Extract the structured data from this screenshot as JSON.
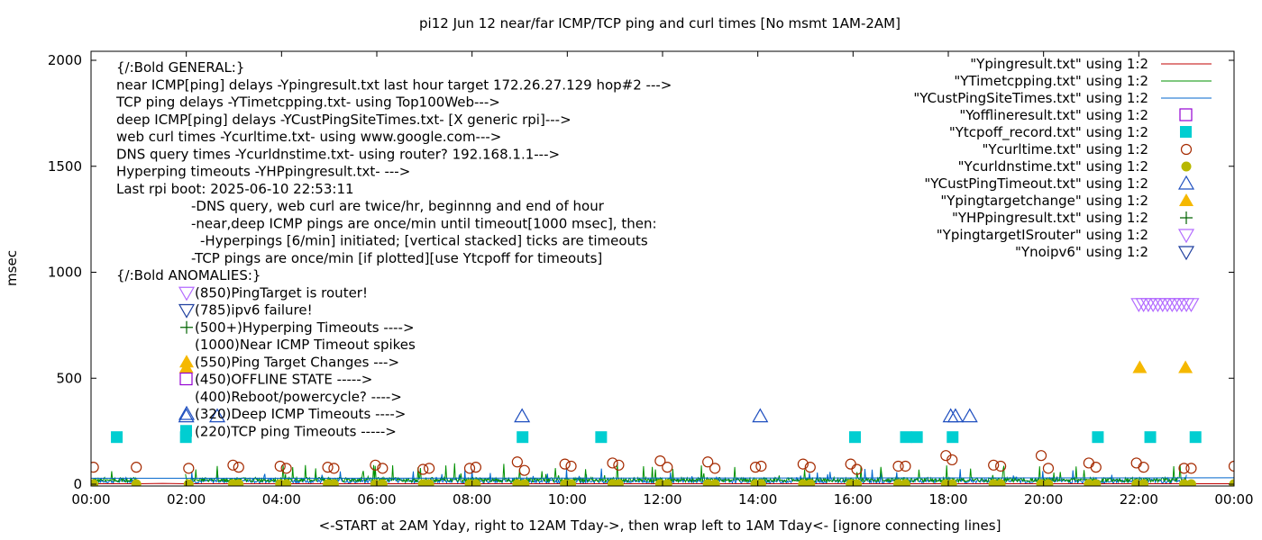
{
  "chart_data": {
    "type": "scatter",
    "title": "pi12 Jun 12  near/far ICMP/TCP ping and curl times [No msmt 1AM-2AM]",
    "xlabel": "<-START at 2AM Yday, right to 12AM Tday->, then wrap left to 1AM Tday<- [ignore connecting lines]",
    "ylabel": "msec",
    "xlim": [
      0,
      24
    ],
    "ylim": [
      0,
      2050
    ],
    "x_tick_labels": [
      "00:00",
      "02:00",
      "04:00",
      "06:00",
      "08:00",
      "10:00",
      "12:00",
      "14:00",
      "16:00",
      "18:00",
      "20:00",
      "22:00",
      "00:00"
    ],
    "x_tick_values": [
      0,
      2,
      4,
      6,
      8,
      10,
      12,
      14,
      16,
      18,
      20,
      22,
      24
    ],
    "y_tick_values": [
      0,
      500,
      1000,
      1500,
      2000
    ],
    "y_tick_labels": [
      "0",
      "500",
      "1000",
      "1500",
      "2000"
    ],
    "grid": false,
    "legend_position": "top-right",
    "annotations": [
      "{/:Bold GENERAL:}",
      "near ICMP[ping] delays -Ypingresult.txt last hour target 172.26.27.129 hop#2 --->",
      "TCP ping delays -YTimetcpping.txt- using Top100Web--->",
      "deep ICMP[ping] delays -YCustPingSiteTimes.txt- [X generic rpi]--->",
      "web curl times -Ycurltime.txt- using www.google.com--->",
      "DNS query times -Ycurldnstime.txt- using router? 192.168.1.1--->",
      "Hyperping timeouts -YHPpingresult.txt- --->",
      "Last rpi boot: 2025-06-10 22:53:11",
      "-DNS query, web curl are twice/hr, beginnng and end of hour",
      "-near,deep ICMP pings are once/min until timeout[1000 msec], then:",
      "-Hyperpings [6/min] initiated; [vertical stacked] ticks are timeouts",
      "-TCP pings are once/min [if plotted][use Ytcpoff for timeouts]",
      "{/:Bold ANOMALIES:}",
      "(850)PingTarget is router!",
      "(785)ipv6 failure!",
      "(500+)Hyperping Timeouts ---->",
      "(1000)Near ICMP Timeout spikes",
      "(550)Ping Target Changes --->",
      "(450)OFFLINE STATE ----->",
      "(400)Reboot/powercycle? ---->",
      "(320)Deep ICMP Timeouts ---->",
      "(220)TCP ping Timeouts ----->"
    ],
    "series": [
      {
        "name": "\"Ypingresult.txt\" using 1:2",
        "color": "#c00000",
        "style": "line",
        "x": [
          0,
          1.0,
          1.5,
          2.0,
          24
        ],
        "y": [
          2,
          2,
          4,
          2,
          2
        ]
      },
      {
        "name": "\"YTimetcpping.txt\" using 1:2",
        "color": "#009000",
        "style": "line",
        "x": [],
        "y": []
      },
      {
        "name": "\"YCustPingSiteTimes.txt\" using 1:2",
        "color": "#0066cc",
        "style": "line",
        "x": [
          0,
          2.0,
          24
        ],
        "y": [
          28,
          28,
          30
        ]
      },
      {
        "name": "\"Yofflineresult.txt\" using 1:2",
        "color": "#9400d3",
        "style": "open-square",
        "x": [],
        "y": []
      },
      {
        "name": "\"Ytcpoff_record.txt\" using 1:2",
        "color": "#00ced1",
        "style": "filled-square",
        "x": [
          0.55,
          2.0,
          9.07,
          10.72,
          16.05,
          17.12,
          17.35,
          18.1,
          21.15,
          22.25,
          23.2
        ],
        "y": [
          220,
          220,
          220,
          220,
          220,
          220,
          220,
          220,
          220,
          220,
          220
        ]
      },
      {
        "name": "\"Ycurltime.txt\" using 1:2",
        "color": "#a52a00",
        "style": "open-circle",
        "x": [
          0.05,
          0.95,
          2.05,
          2.98,
          3.1,
          3.97,
          4.1,
          4.97,
          5.1,
          5.97,
          6.12,
          6.97,
          7.1,
          7.95,
          8.08,
          8.95,
          9.1,
          9.95,
          10.08,
          10.95,
          11.08,
          11.95,
          12.1,
          12.95,
          13.1,
          13.95,
          14.07,
          14.95,
          15.1,
          15.95,
          16.08,
          16.95,
          17.1,
          17.95,
          18.08,
          18.95,
          19.1,
          19.95,
          20.1,
          20.95,
          21.1,
          21.95,
          22.1,
          22.95,
          23.1,
          24.0
        ],
        "y": [
          80,
          80,
          75,
          90,
          80,
          85,
          75,
          80,
          75,
          90,
          75,
          70,
          75,
          75,
          80,
          105,
          65,
          95,
          85,
          100,
          90,
          110,
          80,
          105,
          75,
          80,
          85,
          95,
          80,
          95,
          70,
          85,
          85,
          135,
          115,
          90,
          85,
          135,
          75,
          100,
          80,
          100,
          80,
          75,
          75,
          85
        ]
      },
      {
        "name": "\"Ycurldnstime.txt\" using 1:2",
        "color": "#b8b800",
        "style": "filled-circle",
        "x": [
          0.05,
          0.95,
          2.05,
          2.98,
          3.1,
          3.97,
          4.1,
          4.97,
          5.1,
          5.97,
          6.12,
          6.97,
          7.1,
          7.95,
          8.08,
          8.95,
          9.1,
          9.95,
          10.08,
          10.95,
          11.08,
          11.95,
          12.1,
          12.95,
          13.1,
          13.95,
          14.07,
          14.95,
          15.1,
          15.95,
          16.08,
          16.95,
          17.1,
          17.95,
          18.08,
          18.95,
          19.1,
          19.95,
          20.1,
          20.95,
          21.1,
          21.95,
          22.1,
          22.95,
          23.1,
          24.0
        ],
        "y": [
          0,
          0,
          0,
          0,
          0,
          0,
          0,
          0,
          0,
          0,
          0,
          0,
          0,
          0,
          0,
          0,
          0,
          0,
          0,
          0,
          0,
          0,
          0,
          0,
          0,
          0,
          0,
          0,
          0,
          0,
          0,
          0,
          0,
          0,
          0,
          0,
          0,
          0,
          0,
          0,
          0,
          0,
          0,
          0,
          0,
          0
        ]
      },
      {
        "name": "\"YCustPingTimeout.txt\" using 1:2",
        "color": "#1f4fbf",
        "style": "open-triangle-up",
        "x": [
          2.0,
          2.65,
          9.05,
          14.05,
          18.05,
          18.15,
          18.45
        ],
        "y": [
          320,
          320,
          320,
          320,
          320,
          320,
          320
        ]
      },
      {
        "name": "\"Ypingtargetchange\" using 1:2",
        "color": "#f5b800",
        "style": "filled-triangle-up",
        "x": [
          2.0,
          22.02,
          22.98
        ],
        "y": [
          550,
          550,
          550
        ]
      },
      {
        "name": "\"YHPpingresult.txt\" using 1:2",
        "color": "#006400",
        "style": "plus",
        "x": [],
        "y": []
      },
      {
        "name": "\"YpingtargetISrouter\" using 1:2",
        "color": "#b36bff",
        "style": "open-triangle-down",
        "x": [
          22.0,
          22.1,
          22.2,
          22.3,
          22.4,
          22.5,
          22.6,
          22.7,
          22.8,
          22.9,
          23.0,
          23.1
        ],
        "y": [
          850,
          850,
          850,
          850,
          850,
          850,
          850,
          850,
          850,
          850,
          850,
          850
        ]
      },
      {
        "name": "\"Ynoipv6\" using 1:2",
        "color": "#1f3f9f",
        "style": "open-triangle-down",
        "x": [],
        "y": []
      }
    ]
  }
}
